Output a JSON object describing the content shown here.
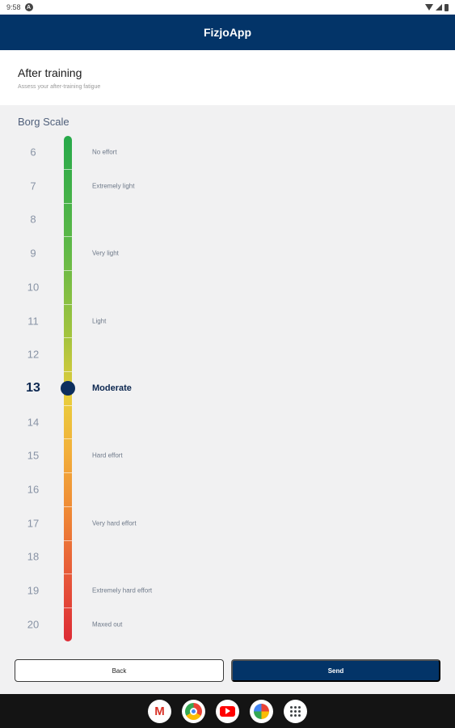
{
  "status_bar": {
    "time": "9:58",
    "notification_icon": "a-icon",
    "icons": [
      "wifi-icon",
      "signal-icon",
      "battery-icon"
    ]
  },
  "app_bar": {
    "title": "FizjoApp"
  },
  "header": {
    "title": "After training",
    "subtitle": "Assess your after-training fatigue"
  },
  "scale": {
    "title": "Borg Scale",
    "selected_value": "13",
    "rows": [
      {
        "value": "6",
        "label": "No effort"
      },
      {
        "value": "7",
        "label": "Extremely light"
      },
      {
        "value": "8",
        "label": ""
      },
      {
        "value": "9",
        "label": "Very light"
      },
      {
        "value": "10",
        "label": ""
      },
      {
        "value": "11",
        "label": "Light"
      },
      {
        "value": "12",
        "label": ""
      },
      {
        "value": "13",
        "label": "Moderate"
      },
      {
        "value": "14",
        "label": ""
      },
      {
        "value": "15",
        "label": "Hard effort"
      },
      {
        "value": "16",
        "label": ""
      },
      {
        "value": "17",
        "label": "Very hard effort"
      },
      {
        "value": "18",
        "label": ""
      },
      {
        "value": "19",
        "label": "Extremely hard effort"
      },
      {
        "value": "20",
        "label": "Maxed out"
      }
    ]
  },
  "actions": {
    "back_label": "Back",
    "send_label": "Send"
  },
  "dock": {
    "apps": [
      "gmail-icon",
      "chrome-icon",
      "youtube-icon",
      "photos-icon",
      "app-drawer-icon"
    ]
  },
  "colors": {
    "primary": "#033468",
    "selected": "#0c2e5e",
    "background": "#f1f1f2"
  }
}
